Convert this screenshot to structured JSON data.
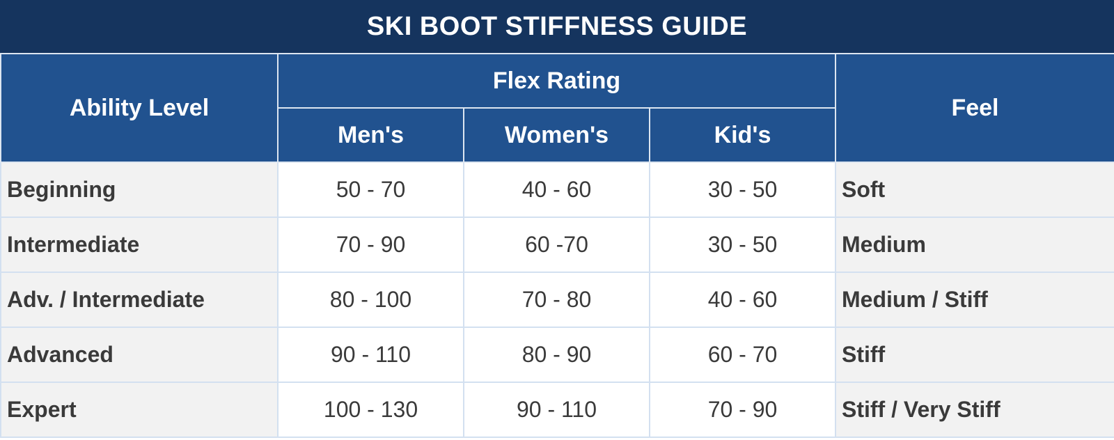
{
  "title": "SKI BOOT STIFFNESS GUIDE",
  "headers": {
    "ability": "Ability Level",
    "flex_rating": "Flex Rating",
    "mens": "Men's",
    "womens": "Women's",
    "kids": "Kid's",
    "feel": "Feel"
  },
  "rows": [
    {
      "ability": "Beginning",
      "mens": "50 - 70",
      "womens": "40 - 60",
      "kids": "30 - 50",
      "feel": "Soft"
    },
    {
      "ability": "Intermediate",
      "mens": "70 - 90",
      "womens": "60 -70",
      "kids": "30 - 50",
      "feel": "Medium"
    },
    {
      "ability": "Adv. / Intermediate",
      "mens": "80 - 100",
      "womens": "70 - 80",
      "kids": "40 - 60",
      "feel": "Medium / Stiff"
    },
    {
      "ability": "Advanced",
      "mens": "90 - 110",
      "womens": "80 - 90",
      "kids": "60 - 70",
      "feel": "Stiff"
    },
    {
      "ability": "Expert",
      "mens": "100 - 130",
      "womens": "90 - 110",
      "kids": "70 - 90",
      "feel": "Stiff / Very Stiff"
    }
  ],
  "colors": {
    "title_bg": "#15345e",
    "header_bg": "#21528f",
    "label_cell_bg": "#f2f2f2",
    "value_cell_bg": "#ffffff",
    "grid_line": "#d3e0f0"
  }
}
